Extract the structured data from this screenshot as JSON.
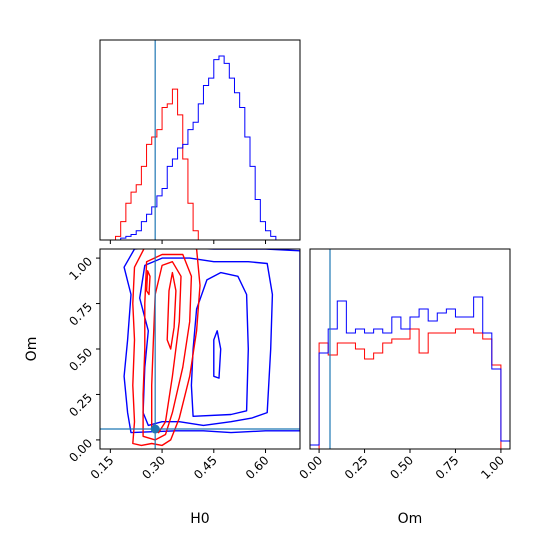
{
  "chart_data": {
    "type": "corner",
    "parameters": [
      "H0",
      "Om"
    ],
    "truth": {
      "H0": 0.28,
      "Om": 0.06
    },
    "colors": {
      "red": "#ff0000",
      "blue": "#0000ff",
      "truth": "#1f77b4"
    },
    "axes": {
      "H0": {
        "label": "H0",
        "ticks": [
          0.15,
          0.3,
          0.45,
          0.6
        ],
        "tick_labels": [
          "0.15",
          "0.30",
          "0.45",
          "0.60"
        ],
        "range": [
          0.12,
          0.7
        ]
      },
      "Om": {
        "label": "Om",
        "ticks": [
          0.0,
          0.25,
          0.5,
          0.75,
          1.0
        ],
        "tick_labels": [
          "0.00",
          "0.25",
          "0.50",
          "0.75",
          "1.00"
        ],
        "range": [
          -0.05,
          1.05
        ]
      }
    },
    "hist_H0": {
      "bin_edges": [
        0.12,
        0.135,
        0.15,
        0.165,
        0.18,
        0.195,
        0.21,
        0.225,
        0.24,
        0.255,
        0.27,
        0.285,
        0.3,
        0.315,
        0.33,
        0.345,
        0.36,
        0.375,
        0.39,
        0.405,
        0.42,
        0.435,
        0.45,
        0.465,
        0.48,
        0.495,
        0.51,
        0.525,
        0.54,
        0.555,
        0.57,
        0.585,
        0.6,
        0.615,
        0.63,
        0.645,
        0.66,
        0.675,
        0.7
      ],
      "red": [
        0,
        0,
        0,
        0.02,
        0.1,
        0.2,
        0.26,
        0.3,
        0.4,
        0.52,
        0.56,
        0.6,
        0.72,
        0.74,
        0.82,
        0.68,
        0.44,
        0.2,
        0.05,
        0,
        0,
        0,
        0,
        0,
        0,
        0,
        0,
        0,
        0,
        0,
        0,
        0,
        0,
        0,
        0,
        0,
        0,
        0
      ],
      "blue": [
        0,
        0,
        0,
        0,
        0.01,
        0.02,
        0.03,
        0.05,
        0.1,
        0.14,
        0.18,
        0.24,
        0.28,
        0.4,
        0.44,
        0.5,
        0.52,
        0.6,
        0.64,
        0.74,
        0.84,
        0.88,
        0.98,
        1.0,
        0.96,
        0.88,
        0.8,
        0.72,
        0.56,
        0.4,
        0.22,
        0.1,
        0.05,
        0.02,
        0,
        0,
        0,
        0
      ]
    },
    "hist_Om": {
      "bin_edges": [
        -0.05,
        0.0,
        0.05,
        0.1,
        0.15,
        0.2,
        0.25,
        0.3,
        0.35,
        0.4,
        0.45,
        0.5,
        0.55,
        0.6,
        0.65,
        0.7,
        0.75,
        0.8,
        0.85,
        0.9,
        0.95,
        1.0,
        1.05
      ],
      "red": [
        0,
        0.53,
        0.47,
        0.53,
        0.53,
        0.5,
        0.45,
        0.48,
        0.53,
        0.55,
        0.55,
        0.6,
        0.48,
        0.58,
        0.58,
        0.58,
        0.6,
        0.6,
        0.58,
        0.55,
        0.42,
        0,
        0
      ],
      "blue": [
        0.02,
        0.48,
        0.6,
        0.74,
        0.58,
        0.6,
        0.58,
        0.6,
        0.58,
        0.66,
        0.6,
        0.66,
        0.7,
        0.64,
        0.68,
        0.7,
        0.66,
        0.66,
        0.76,
        0.58,
        0.4,
        0.04,
        0.04
      ]
    },
    "contours_2d": {
      "red": [
        [
          [
            0.215,
            -0.02
          ],
          [
            0.24,
            -0.03
          ],
          [
            0.27,
            -0.02
          ],
          [
            0.3,
            -0.03
          ],
          [
            0.325,
            0.0
          ],
          [
            0.35,
            0.12
          ],
          [
            0.38,
            0.35
          ],
          [
            0.4,
            0.6
          ],
          [
            0.41,
            0.85
          ],
          [
            0.4,
            1.05
          ],
          [
            0.3,
            1.08
          ],
          [
            0.25,
            1.06
          ],
          [
            0.22,
            0.95
          ],
          [
            0.215,
            0.75
          ],
          [
            0.22,
            0.55
          ],
          [
            0.215,
            0.3
          ],
          [
            0.22,
            0.1
          ],
          [
            0.215,
            -0.02
          ]
        ],
        [
          [
            0.245,
            0.02
          ],
          [
            0.28,
            0.0
          ],
          [
            0.31,
            0.03
          ],
          [
            0.33,
            0.15
          ],
          [
            0.36,
            0.4
          ],
          [
            0.38,
            0.65
          ],
          [
            0.385,
            0.9
          ],
          [
            0.36,
            1.02
          ],
          [
            0.3,
            1.02
          ],
          [
            0.255,
            0.98
          ],
          [
            0.25,
            0.75
          ],
          [
            0.25,
            0.5
          ],
          [
            0.245,
            0.25
          ],
          [
            0.245,
            0.02
          ]
        ],
        [
          [
            0.27,
            0.06
          ],
          [
            0.29,
            0.04
          ],
          [
            0.31,
            0.1
          ],
          [
            0.33,
            0.35
          ],
          [
            0.35,
            0.65
          ],
          [
            0.355,
            0.9
          ],
          [
            0.33,
            0.98
          ],
          [
            0.3,
            0.96
          ],
          [
            0.28,
            0.8
          ],
          [
            0.275,
            0.55
          ],
          [
            0.27,
            0.3
          ],
          [
            0.27,
            0.06
          ]
        ],
        [
          [
            0.315,
            0.55
          ],
          [
            0.325,
            0.5
          ],
          [
            0.335,
            0.62
          ],
          [
            0.34,
            0.82
          ],
          [
            0.33,
            0.92
          ],
          [
            0.32,
            0.82
          ],
          [
            0.315,
            0.55
          ]
        ],
        [
          [
            0.255,
            0.82
          ],
          [
            0.262,
            0.8
          ],
          [
            0.265,
            0.9
          ],
          [
            0.258,
            0.93
          ],
          [
            0.255,
            0.82
          ]
        ]
      ],
      "blue": [
        [
          [
            0.19,
            0.95
          ],
          [
            0.21,
            0.8
          ],
          [
            0.2,
            0.55
          ],
          [
            0.19,
            0.35
          ],
          [
            0.2,
            0.15
          ],
          [
            0.21,
            0.04
          ],
          [
            0.34,
            0.05
          ],
          [
            0.42,
            0.05
          ],
          [
            0.5,
            0.04
          ],
          [
            0.6,
            0.05
          ],
          [
            0.66,
            0.05
          ],
          [
            0.7,
            0.05
          ],
          [
            0.7,
            1.04
          ],
          [
            0.6,
            1.05
          ],
          [
            0.45,
            1.05
          ],
          [
            0.3,
            1.06
          ],
          [
            0.22,
            1.05
          ],
          [
            0.19,
            0.95
          ]
        ],
        [
          [
            0.235,
            0.78
          ],
          [
            0.26,
            0.6
          ],
          [
            0.25,
            0.4
          ],
          [
            0.245,
            0.15
          ],
          [
            0.26,
            0.08
          ],
          [
            0.3,
            0.1
          ],
          [
            0.35,
            0.1
          ],
          [
            0.42,
            0.08
          ],
          [
            0.5,
            0.1
          ],
          [
            0.56,
            0.12
          ],
          [
            0.605,
            0.15
          ],
          [
            0.615,
            0.5
          ],
          [
            0.62,
            0.8
          ],
          [
            0.605,
            0.97
          ],
          [
            0.55,
            0.98
          ],
          [
            0.45,
            0.98
          ],
          [
            0.38,
            1.0
          ],
          [
            0.3,
            1.0
          ],
          [
            0.25,
            0.96
          ],
          [
            0.235,
            0.78
          ]
        ],
        [
          [
            0.39,
            0.13
          ],
          [
            0.5,
            0.14
          ],
          [
            0.545,
            0.16
          ],
          [
            0.55,
            0.5
          ],
          [
            0.545,
            0.8
          ],
          [
            0.52,
            0.9
          ],
          [
            0.47,
            0.92
          ],
          [
            0.43,
            0.88
          ],
          [
            0.4,
            0.72
          ],
          [
            0.39,
            0.5
          ],
          [
            0.385,
            0.3
          ],
          [
            0.39,
            0.13
          ]
        ],
        [
          [
            0.45,
            0.35
          ],
          [
            0.465,
            0.34
          ],
          [
            0.47,
            0.5
          ],
          [
            0.46,
            0.6
          ],
          [
            0.45,
            0.55
          ],
          [
            0.45,
            0.35
          ]
        ]
      ]
    },
    "truth_point": {
      "H0": 0.28,
      "Om": 0.06
    }
  }
}
